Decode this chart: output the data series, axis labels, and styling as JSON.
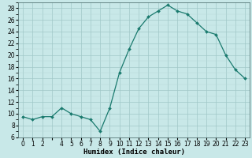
{
  "x": [
    0,
    1,
    2,
    3,
    4,
    5,
    6,
    7,
    8,
    9,
    10,
    11,
    12,
    13,
    14,
    15,
    16,
    17,
    18,
    19,
    20,
    21,
    22,
    23
  ],
  "y": [
    9.5,
    9.0,
    9.5,
    9.5,
    11.0,
    10.0,
    9.5,
    9.0,
    7.0,
    11.0,
    17.0,
    21.0,
    24.5,
    26.5,
    27.5,
    28.5,
    27.5,
    27.0,
    25.5,
    24.0,
    23.5,
    20.0,
    17.5,
    16.0
  ],
  "line_color": "#1a7a6e",
  "marker": "D",
  "marker_size": 2.0,
  "bg_color": "#c8e8e8",
  "grid_major_color": "#a0c8c8",
  "grid_minor_color": "#b8d8d8",
  "xlabel": "Humidex (Indice chaleur)",
  "xlim": [
    -0.5,
    23.5
  ],
  "ylim": [
    6,
    29
  ],
  "yticks": [
    6,
    8,
    10,
    12,
    14,
    16,
    18,
    20,
    22,
    24,
    26,
    28
  ],
  "xtick_labels": [
    "0",
    "1",
    "2",
    "",
    "4",
    "5",
    "6",
    "7",
    "8",
    "9",
    "10",
    "11",
    "12",
    "13",
    "14",
    "15",
    "16",
    "17",
    "18",
    "19",
    "20",
    "21",
    "22",
    "23"
  ],
  "xlabel_fontsize": 6.5,
  "tick_fontsize": 5.5,
  "linewidth": 0.9
}
